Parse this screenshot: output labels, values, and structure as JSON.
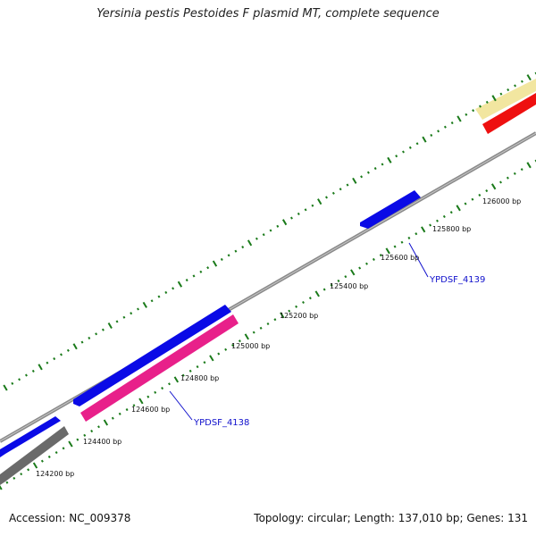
{
  "title": "Yersinia pestis Pestoides F plasmid MT, complete sequence",
  "accession": "Accession: NC_009378",
  "summary": "Topology: circular; Length: 137,010 bp; Genes: 131",
  "colors": {
    "backbone": "#8a8a8a",
    "tick": "#1a7a1a",
    "gene_blue": "#0a0ae6",
    "gene_pink": "#e8208a",
    "gene_red": "#ee1010",
    "gene_gray": "#6a6a6a",
    "gene_yellow": "#f2e6a0",
    "label_blue": "#1010cc"
  },
  "scale_labels": [
    {
      "text": "124200 bp",
      "bp": 124200
    },
    {
      "text": "124400 bp",
      "bp": 124400
    },
    {
      "text": "124600 bp",
      "bp": 124600
    },
    {
      "text": "124800 bp",
      "bp": 124800
    },
    {
      "text": "125000 bp",
      "bp": 125000
    },
    {
      "text": "125200 bp",
      "bp": 125200
    },
    {
      "text": "125400 bp",
      "bp": 125400
    },
    {
      "text": "125600 bp",
      "bp": 125600
    },
    {
      "text": "125800 bp",
      "bp": 125800
    },
    {
      "text": "126000 bp",
      "bp": 126000
    }
  ],
  "gene_labels": [
    {
      "text": "YPDSF_4138"
    },
    {
      "text": "YPDSF_4139"
    }
  ]
}
